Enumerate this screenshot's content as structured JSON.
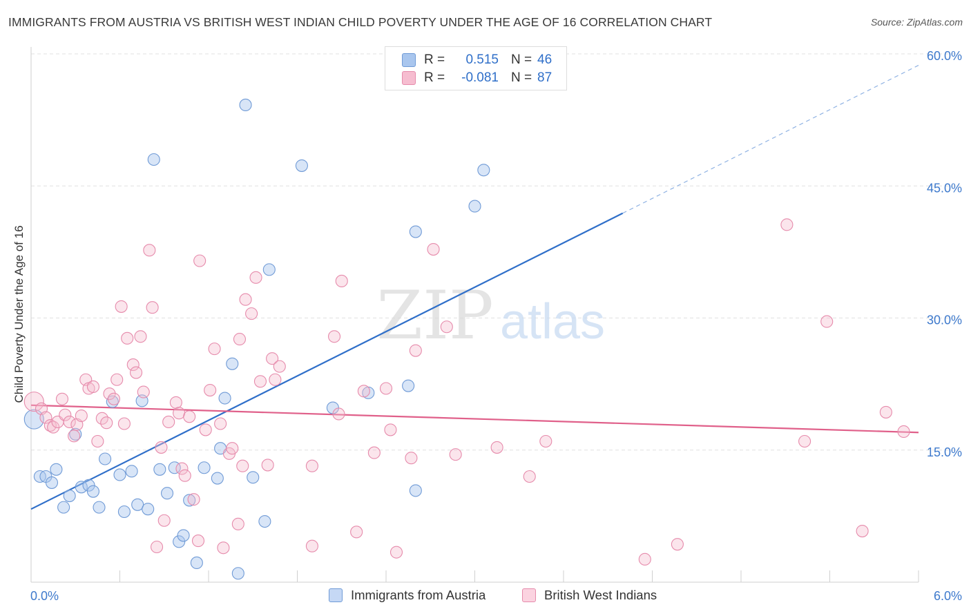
{
  "title": "IMMIGRANTS FROM AUSTRIA VS BRITISH WEST INDIAN CHILD POVERTY UNDER THE AGE OF 16 CORRELATION CHART",
  "source": "Source: ZipAtlas.com",
  "watermark": {
    "zip": "ZIP",
    "atlas": "atlas"
  },
  "legend": {
    "rows": [
      {
        "r_label": "R =",
        "r_value": "0.515",
        "n_label": "N =",
        "n_value": "46",
        "color": "#a9c6ee",
        "border": "#6f9ad6"
      },
      {
        "r_label": "R =",
        "r_value": "-0.081",
        "n_label": "N =",
        "n_value": "87",
        "color": "#f6bdd0",
        "border": "#e68aab"
      }
    ]
  },
  "bottom_legend": [
    {
      "label": "Immigrants from Austria",
      "color": "#c5d8f5",
      "border": "#6f9ad6"
    },
    {
      "label": "British West Indians",
      "color": "#fbd3e0",
      "border": "#e68aab"
    }
  ],
  "chart_data": {
    "type": "scatter",
    "title": "IMMIGRANTS FROM AUSTRIA VS BRITISH WEST INDIAN CHILD POVERTY UNDER THE AGE OF 16 CORRELATION CHART",
    "xlabel": "",
    "ylabel": "Child Poverty Under the Age of 16",
    "xlim": [
      0,
      6
    ],
    "ylim": [
      0,
      60
    ],
    "x_tick_labels": [
      "0.0%",
      "6.0%"
    ],
    "y_tick_labels": [
      "15.0%",
      "30.0%",
      "45.0%",
      "60.0%"
    ],
    "y_ticks": [
      15,
      30,
      45,
      60
    ],
    "grid": true,
    "series": [
      {
        "name": "Immigrants from Austria",
        "color": "#6f9ad6",
        "fill": "rgba(169,198,238,0.45)",
        "trend": {
          "x0": 0.0,
          "y0": 8.3,
          "x1": 4.0,
          "y1": 41.9,
          "dash_to_x": 6.0,
          "dash_to_y": 58.7,
          "color": "#2f6fc9"
        },
        "points": [
          [
            0.02,
            18.5
          ],
          [
            0.06,
            12.0
          ],
          [
            0.1,
            12.0
          ],
          [
            0.14,
            11.3
          ],
          [
            0.17,
            12.8
          ],
          [
            0.22,
            8.5
          ],
          [
            0.26,
            9.8
          ],
          [
            0.3,
            16.8
          ],
          [
            0.34,
            10.8
          ],
          [
            0.39,
            11.0
          ],
          [
            0.42,
            10.3
          ],
          [
            0.46,
            8.5
          ],
          [
            0.5,
            14.0
          ],
          [
            0.55,
            20.5
          ],
          [
            0.6,
            12.2
          ],
          [
            0.63,
            8.0
          ],
          [
            0.68,
            12.6
          ],
          [
            0.72,
            8.8
          ],
          [
            0.75,
            20.6
          ],
          [
            0.79,
            8.3
          ],
          [
            0.83,
            48.0
          ],
          [
            0.87,
            12.8
          ],
          [
            0.92,
            10.1
          ],
          [
            0.97,
            13.0
          ],
          [
            1.0,
            4.6
          ],
          [
            1.03,
            5.3
          ],
          [
            1.07,
            9.3
          ],
          [
            1.12,
            2.2
          ],
          [
            1.17,
            13.0
          ],
          [
            1.26,
            11.8
          ],
          [
            1.28,
            15.2
          ],
          [
            1.31,
            20.9
          ],
          [
            1.36,
            24.8
          ],
          [
            1.4,
            1.0
          ],
          [
            1.45,
            54.2
          ],
          [
            1.5,
            11.9
          ],
          [
            1.58,
            6.9
          ],
          [
            1.61,
            35.5
          ],
          [
            1.83,
            47.3
          ],
          [
            2.04,
            19.8
          ],
          [
            2.28,
            21.5
          ],
          [
            2.55,
            22.3
          ],
          [
            2.6,
            10.4
          ],
          [
            2.6,
            39.8
          ],
          [
            3.0,
            42.7
          ],
          [
            3.06,
            46.8
          ]
        ]
      },
      {
        "name": "British West Indians",
        "color": "#e68aab",
        "fill": "rgba(246,189,208,0.40)",
        "trend": {
          "x0": 0.0,
          "y0": 20.1,
          "x1": 6.0,
          "y1": 17.0,
          "color": "#e0608a"
        },
        "points": [
          [
            0.02,
            20.5
          ],
          [
            0.07,
            19.7
          ],
          [
            0.1,
            18.7
          ],
          [
            0.13,
            17.8
          ],
          [
            0.15,
            17.6
          ],
          [
            0.18,
            18.2
          ],
          [
            0.21,
            20.8
          ],
          [
            0.23,
            19.0
          ],
          [
            0.26,
            18.2
          ],
          [
            0.29,
            16.6
          ],
          [
            0.31,
            17.9
          ],
          [
            0.34,
            18.9
          ],
          [
            0.37,
            23.0
          ],
          [
            0.39,
            22.0
          ],
          [
            0.42,
            22.2
          ],
          [
            0.45,
            16.0
          ],
          [
            0.48,
            18.6
          ],
          [
            0.51,
            18.1
          ],
          [
            0.53,
            21.4
          ],
          [
            0.56,
            20.8
          ],
          [
            0.58,
            23.0
          ],
          [
            0.61,
            31.3
          ],
          [
            0.63,
            18.0
          ],
          [
            0.65,
            27.7
          ],
          [
            0.69,
            24.7
          ],
          [
            0.71,
            23.8
          ],
          [
            0.74,
            27.9
          ],
          [
            0.76,
            21.6
          ],
          [
            0.8,
            37.7
          ],
          [
            0.82,
            31.2
          ],
          [
            0.85,
            4.0
          ],
          [
            0.88,
            15.3
          ],
          [
            0.9,
            7.0
          ],
          [
            0.93,
            18.2
          ],
          [
            0.98,
            20.4
          ],
          [
            1.0,
            19.2
          ],
          [
            1.02,
            12.9
          ],
          [
            1.04,
            12.1
          ],
          [
            1.07,
            18.8
          ],
          [
            1.1,
            9.4
          ],
          [
            1.13,
            4.7
          ],
          [
            1.14,
            36.5
          ],
          [
            1.18,
            17.3
          ],
          [
            1.21,
            21.8
          ],
          [
            1.24,
            26.5
          ],
          [
            1.28,
            18.0
          ],
          [
            1.3,
            3.9
          ],
          [
            1.34,
            14.6
          ],
          [
            1.36,
            15.2
          ],
          [
            1.4,
            6.6
          ],
          [
            1.41,
            27.6
          ],
          [
            1.43,
            13.2
          ],
          [
            1.45,
            32.1
          ],
          [
            1.49,
            30.5
          ],
          [
            1.52,
            34.6
          ],
          [
            1.55,
            22.8
          ],
          [
            1.6,
            13.3
          ],
          [
            1.63,
            25.4
          ],
          [
            1.65,
            23.0
          ],
          [
            1.68,
            24.5
          ],
          [
            1.9,
            4.1
          ],
          [
            1.9,
            13.2
          ],
          [
            2.05,
            27.9
          ],
          [
            2.08,
            19.1
          ],
          [
            2.1,
            34.2
          ],
          [
            2.2,
            5.7
          ],
          [
            2.25,
            21.7
          ],
          [
            2.32,
            14.7
          ],
          [
            2.4,
            22.0
          ],
          [
            2.43,
            17.3
          ],
          [
            2.47,
            3.4
          ],
          [
            2.57,
            14.1
          ],
          [
            2.6,
            26.3
          ],
          [
            2.72,
            37.8
          ],
          [
            2.81,
            29.0
          ],
          [
            2.87,
            14.5
          ],
          [
            3.15,
            15.3
          ],
          [
            3.37,
            12.0
          ],
          [
            3.48,
            16.0
          ],
          [
            4.15,
            2.6
          ],
          [
            4.37,
            4.3
          ],
          [
            5.11,
            40.6
          ],
          [
            5.23,
            16.0
          ],
          [
            5.38,
            29.6
          ],
          [
            5.62,
            5.8
          ],
          [
            5.78,
            19.3
          ],
          [
            5.9,
            17.1
          ]
        ]
      }
    ]
  }
}
